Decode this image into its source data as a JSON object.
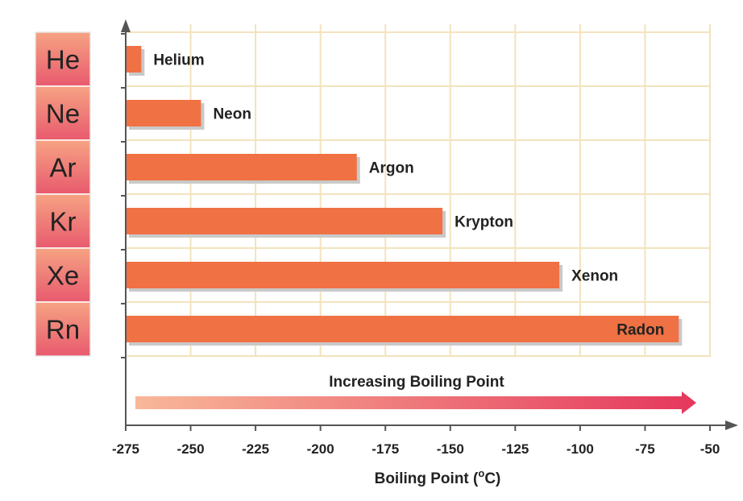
{
  "chart_data": {
    "type": "bar",
    "orientation": "horizontal",
    "title": "",
    "categories": [
      "Helium",
      "Neon",
      "Argon",
      "Krypton",
      "Xenon",
      "Radon"
    ],
    "symbols": [
      "He",
      "Ne",
      "Ar",
      "Kr",
      "Xe",
      "Rn"
    ],
    "values": [
      -269,
      -246,
      -186,
      -153,
      -108,
      -62
    ],
    "xlabel_main": "Boiling Point (",
    "xlabel_sup": "o",
    "xlabel_end": "C)",
    "xlim": [
      -275,
      -50
    ],
    "xticks": [
      "-275",
      "-250",
      "-225",
      "-200",
      "-175",
      "-150",
      "-125",
      "-100",
      "-75",
      "-50"
    ],
    "annotation": "Increasing Boiling Point",
    "grid": true,
    "colors": {
      "bar": "#f07143",
      "bar_shadow": "#c9c9c9",
      "grid": "#f3e3bd",
      "axis": "#555555",
      "symbol_top": "#f6a383",
      "symbol_bottom": "#e85a6e",
      "arrow_start": "#f8b899",
      "arrow_end": "#e5375c"
    }
  }
}
